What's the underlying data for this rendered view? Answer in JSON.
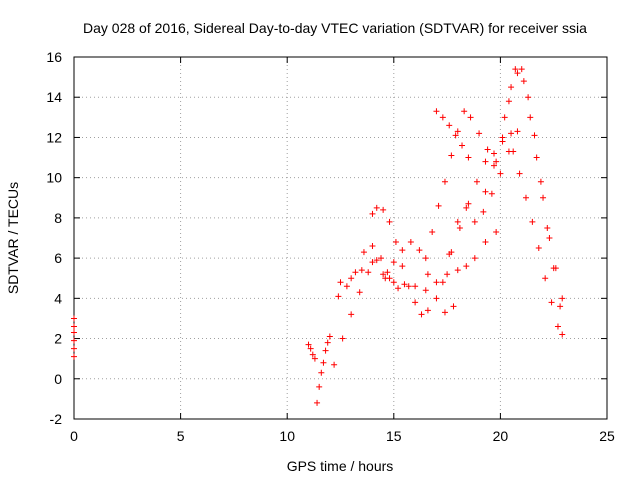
{
  "chart_data": {
    "type": "scatter",
    "title": "Day 028 of 2016, Sidereal Day-to-day VTEC variation (SDTVAR) for receiver ssia",
    "xlabel": "GPS time / hours",
    "ylabel": "SDTVAR / TECUs",
    "xlim": [
      0,
      25
    ],
    "ylim": [
      -2,
      16
    ],
    "xticks": [
      0,
      5,
      10,
      15,
      20,
      25
    ],
    "yticks": [
      -2,
      0,
      2,
      4,
      6,
      8,
      10,
      12,
      14,
      16
    ],
    "grid": true,
    "marker": "+",
    "color": "#ff0000",
    "segments": [
      {
        "x": [
          0.0,
          0.0,
          0.0,
          0.0,
          0.0,
          0.0
        ],
        "y": [
          1.1,
          1.5,
          1.9,
          2.3,
          2.6,
          3.0
        ]
      },
      {
        "x": [
          11.0,
          11.1,
          11.2,
          11.3
        ],
        "y": [
          1.7,
          1.5,
          1.2,
          1.0
        ]
      },
      {
        "x": [
          11.4,
          11.5,
          11.6,
          11.7,
          11.8,
          11.9,
          12.0
        ],
        "y": [
          -1.2,
          -0.4,
          0.3,
          0.8,
          1.4,
          1.8,
          2.1
        ]
      },
      {
        "x": [
          12.2,
          12.6,
          13.0,
          13.4,
          13.8,
          14.2,
          14.7,
          15.2
        ],
        "y": [
          0.7,
          2.0,
          3.2,
          4.3,
          5.3,
          5.9,
          5.3,
          4.5
        ]
      },
      {
        "x": [
          12.4,
          12.8,
          13.2,
          13.6,
          14.0,
          14.4,
          14.8
        ],
        "y": [
          4.1,
          4.6,
          5.3,
          6.3,
          6.6,
          6.0,
          5.0
        ]
      },
      {
        "x": [
          12.5,
          13.0,
          13.5,
          14.0,
          14.5,
          15.0,
          15.5,
          16.0,
          16.5,
          17.0,
          17.5,
          18.0,
          18.4,
          18.8,
          19.3,
          19.8
        ],
        "y": [
          4.8,
          5.0,
          5.4,
          5.8,
          5.2,
          4.8,
          4.7,
          4.6,
          4.4,
          4.8,
          5.2,
          5.4,
          5.6,
          6.0,
          6.8,
          7.3
        ]
      },
      {
        "x": [
          14.0,
          14.2,
          14.5,
          14.8,
          15.1,
          15.4,
          15.7,
          16.0,
          16.3,
          16.6
        ],
        "y": [
          8.2,
          8.5,
          8.4,
          7.8,
          6.8,
          5.6,
          4.6,
          3.8,
          3.2,
          3.4
        ]
      },
      {
        "x": [
          14.6,
          15.0,
          15.4,
          15.8,
          16.2,
          16.6,
          17.0,
          17.4,
          17.8
        ],
        "y": [
          5.0,
          5.8,
          6.4,
          6.8,
          6.4,
          5.2,
          4.0,
          3.3,
          3.6
        ]
      },
      {
        "x": [
          16.5,
          16.8,
          17.1,
          17.4,
          17.7,
          18.0,
          18.3,
          18.6,
          19.0,
          19.4,
          19.8
        ],
        "y": [
          6.0,
          7.3,
          8.6,
          9.8,
          11.1,
          12.3,
          13.3,
          13.0,
          12.2,
          11.4,
          10.8
        ]
      },
      {
        "x": [
          17.0,
          17.3,
          17.6,
          17.9,
          18.2,
          18.5
        ],
        "y": [
          13.3,
          13.0,
          12.6,
          12.1,
          11.6,
          11.0
        ]
      },
      {
        "x": [
          17.3,
          17.7,
          18.1,
          18.5,
          18.9,
          19.3,
          19.7,
          20.1,
          20.5
        ],
        "y": [
          4.8,
          6.3,
          7.5,
          8.7,
          9.8,
          10.8,
          11.2,
          11.8,
          12.2
        ]
      },
      {
        "x": [
          17.6,
          18.0,
          18.4,
          18.8,
          19.2,
          19.6,
          20.0,
          20.4,
          20.8
        ],
        "y": [
          6.2,
          7.8,
          8.5,
          7.8,
          8.3,
          9.2,
          10.2,
          11.3,
          12.3
        ]
      },
      {
        "x": [
          19.3,
          19.7,
          20.1,
          20.4,
          20.7,
          21.0,
          21.3,
          21.6,
          21.9,
          22.2,
          22.5,
          22.8
        ],
        "y": [
          9.3,
          10.6,
          12.0,
          13.8,
          15.4,
          15.4,
          14.0,
          12.1,
          9.8,
          7.5,
          5.5,
          3.6
        ]
      },
      {
        "x": [
          20.6,
          20.9,
          21.2,
          21.5,
          21.8,
          22.1,
          22.4,
          22.7,
          22.9
        ],
        "y": [
          11.3,
          10.2,
          9.0,
          7.8,
          6.5,
          5.0,
          3.8,
          2.6,
          2.2
        ]
      },
      {
        "x": [
          20.2,
          20.5,
          20.8,
          21.1,
          21.4,
          21.7,
          22.0,
          22.3,
          22.6,
          22.9
        ],
        "y": [
          13.0,
          14.5,
          15.2,
          14.8,
          13.0,
          11.0,
          9.0,
          7.0,
          5.5,
          4.0
        ]
      }
    ]
  }
}
